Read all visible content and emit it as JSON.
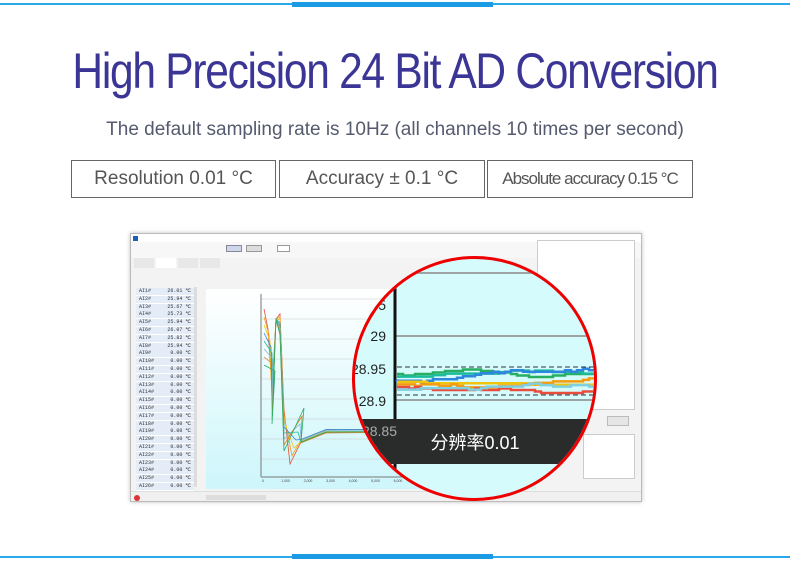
{
  "header": {
    "title": "High Precision 24 Bit AD Conversion",
    "subtitle": "The default sampling rate is 10Hz (all channels 10 times per second)"
  },
  "badges": [
    "Resolution 0.01 °C",
    "Accuracy ± 0.1 °C",
    "Absolute accuracy 0.15 °C"
  ],
  "colors": {
    "accent": "#2aa9ea",
    "title": "#3b3596",
    "magnifier_border": "#e00000"
  },
  "software": {
    "channels": [
      {
        "name": "AI1#",
        "value": "26.01 ℃"
      },
      {
        "name": "AI2#",
        "value": "25.94 ℃"
      },
      {
        "name": "AI3#",
        "value": "25.67 ℃"
      },
      {
        "name": "AI4#",
        "value": "25.73 ℃"
      },
      {
        "name": "AI5#",
        "value": "25.94 ℃"
      },
      {
        "name": "AI6#",
        "value": "26.07 ℃"
      },
      {
        "name": "AI7#",
        "value": "25.82 ℃"
      },
      {
        "name": "AI8#",
        "value": "25.94 ℃"
      },
      {
        "name": "AI9#",
        "value": "0.00 ℃"
      },
      {
        "name": "AI10#",
        "value": "0.00 ℃"
      },
      {
        "name": "AI11#",
        "value": "0.00 ℃"
      },
      {
        "name": "AI12#",
        "value": "0.00 ℃"
      },
      {
        "name": "AI13#",
        "value": "0.00 ℃"
      },
      {
        "name": "AI14#",
        "value": "0.00 ℃"
      },
      {
        "name": "AI15#",
        "value": "0.00 ℃"
      },
      {
        "name": "AI16#",
        "value": "0.00 ℃"
      },
      {
        "name": "AI17#",
        "value": "0.00 ℃"
      },
      {
        "name": "AI18#",
        "value": "0.00 ℃"
      },
      {
        "name": "AI19#",
        "value": "0.00 ℃"
      },
      {
        "name": "AI20#",
        "value": "0.00 ℃"
      },
      {
        "name": "AI21#",
        "value": "0.00 ℃"
      },
      {
        "name": "AI22#",
        "value": "0.00 ℃"
      },
      {
        "name": "AI23#",
        "value": "0.00 ℃"
      },
      {
        "name": "AI24#",
        "value": "0.00 ℃"
      },
      {
        "name": "AI25#",
        "value": "0.00 ℃"
      },
      {
        "name": "AI26#",
        "value": "0.00 ℃"
      }
    ],
    "x_ticks": [
      "0",
      "1,000",
      "2,000",
      "3,000",
      "4,000",
      "5,000",
      "6,000",
      "7,000",
      "8,000",
      "9,000",
      "10,000",
      "11,000",
      "12,000"
    ]
  },
  "magnifier": {
    "y_labels": [
      "05",
      "29",
      "28.95",
      "28.9",
      "28.85"
    ],
    "caption": "分辨率0.01"
  }
}
